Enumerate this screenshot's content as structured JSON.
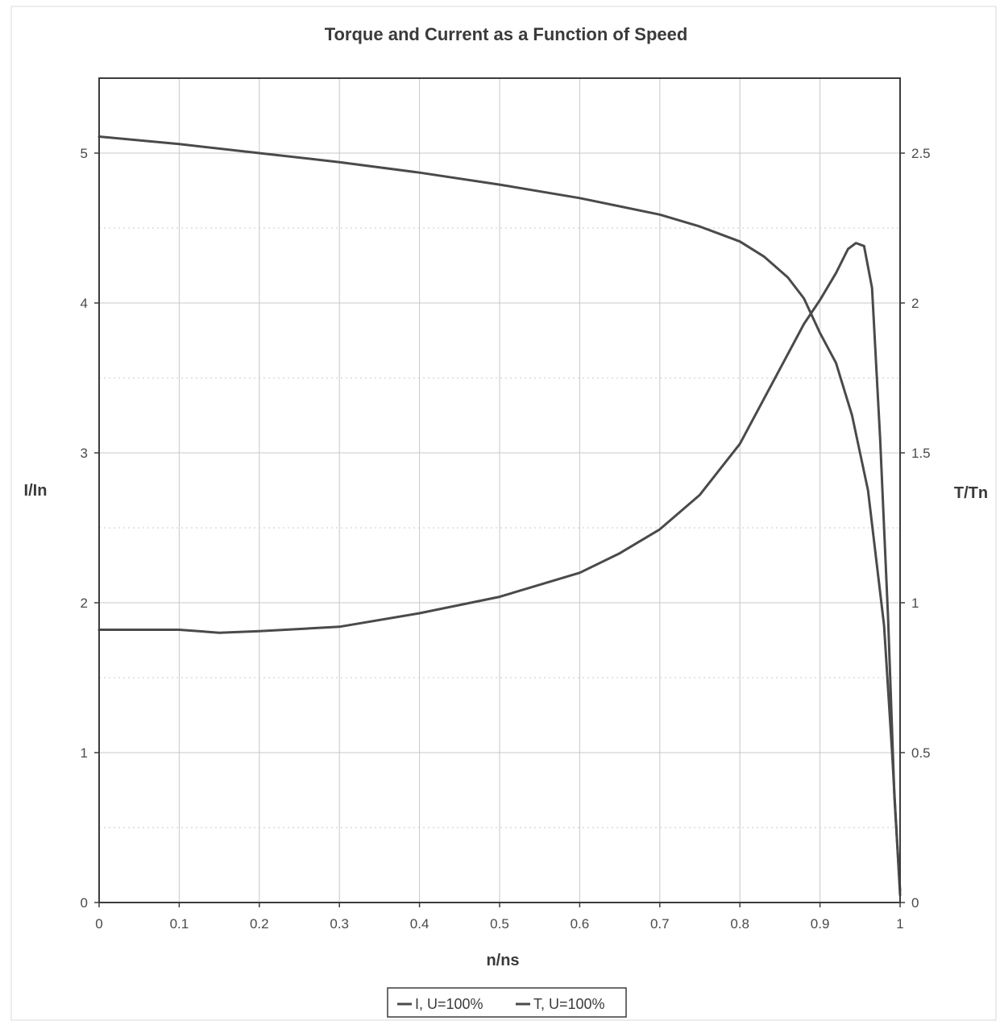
{
  "chart_data": {
    "type": "line",
    "title": "Torque and Current as a Function of Speed",
    "xlabel": "n/ns",
    "ylabel_left": "I/In",
    "ylabel_right": "T/Tn",
    "xlim": [
      0,
      1
    ],
    "ylim_left": [
      0,
      5.5
    ],
    "ylim_right": [
      0,
      2.75
    ],
    "x_ticks": [
      "0",
      "0.1",
      "0.2",
      "0.3",
      "0.4",
      "0.5",
      "0.6",
      "0.7",
      "0.8",
      "0.9",
      "1"
    ],
    "y_left_ticks": [
      "0",
      "1",
      "2",
      "3",
      "4",
      "5"
    ],
    "y_right_ticks": [
      "0",
      "0.5",
      "1",
      "1.5",
      "2",
      "2.5"
    ],
    "grid": true,
    "legend_position": "bottom",
    "series": [
      {
        "name": "I, U=100%",
        "axis": "left",
        "color": "#4a4a4a",
        "x": [
          0,
          0.1,
          0.2,
          0.3,
          0.4,
          0.5,
          0.6,
          0.7,
          0.75,
          0.8,
          0.83,
          0.86,
          0.88,
          0.9,
          0.92,
          0.94,
          0.96,
          0.98,
          0.99,
          1.0
        ],
        "y": [
          5.11,
          5.06,
          5.0,
          4.94,
          4.87,
          4.79,
          4.7,
          4.59,
          4.51,
          4.41,
          4.31,
          4.17,
          4.03,
          3.8,
          3.6,
          3.25,
          2.75,
          1.85,
          1.0,
          0.05
        ]
      },
      {
        "name": "T, U=100%",
        "axis": "right",
        "color": "#4a4a4a",
        "x": [
          0,
          0.1,
          0.15,
          0.2,
          0.3,
          0.4,
          0.5,
          0.6,
          0.65,
          0.7,
          0.75,
          0.8,
          0.85,
          0.88,
          0.9,
          0.92,
          0.935,
          0.945,
          0.955,
          0.965,
          0.975,
          0.985,
          0.993,
          1.0
        ],
        "y": [
          0.91,
          0.91,
          0.9,
          0.905,
          0.92,
          0.965,
          1.02,
          1.1,
          1.165,
          1.245,
          1.36,
          1.53,
          1.78,
          1.93,
          2.01,
          2.1,
          2.18,
          2.2,
          2.19,
          2.05,
          1.55,
          0.95,
          0.35,
          0.04
        ]
      }
    ]
  }
}
